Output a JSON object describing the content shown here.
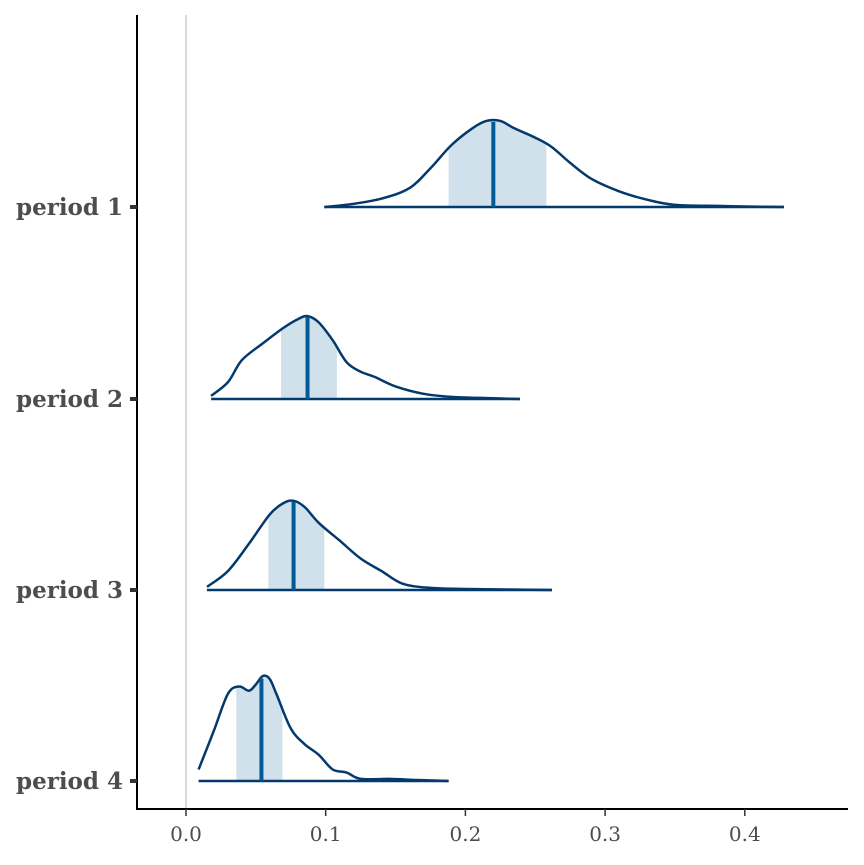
{
  "chart_data": {
    "type": "area",
    "title": "",
    "xlabel": "",
    "ylabel": "",
    "xlim": [
      -0.035,
      0.475
    ],
    "x_ticks": [
      "0.0",
      "0.1",
      "0.2",
      "0.3",
      "0.4"
    ],
    "reference_line_x": 0,
    "grid": false,
    "legend": "none",
    "colors": {
      "outline": "#03396c",
      "interval_fill": "#d1e1ec",
      "point_line": "#005b96",
      "reference_line": "#d9d9d9",
      "axis": "#000000",
      "text": "#4d4d4d"
    },
    "series": [
      {
        "name": "period 1",
        "range": [
          0.099,
          0.428
        ],
        "interval": [
          0.188,
          0.258
        ],
        "point": 0.22,
        "density": [
          [
            0.099,
            0.0
          ],
          [
            0.12,
            0.03
          ],
          [
            0.14,
            0.08
          ],
          [
            0.16,
            0.18
          ],
          [
            0.175,
            0.37
          ],
          [
            0.19,
            0.59
          ],
          [
            0.205,
            0.75
          ],
          [
            0.215,
            0.82
          ],
          [
            0.225,
            0.82
          ],
          [
            0.235,
            0.75
          ],
          [
            0.25,
            0.66
          ],
          [
            0.262,
            0.57
          ],
          [
            0.275,
            0.42
          ],
          [
            0.29,
            0.27
          ],
          [
            0.31,
            0.15
          ],
          [
            0.33,
            0.07
          ],
          [
            0.35,
            0.02
          ],
          [
            0.38,
            0.01
          ],
          [
            0.4,
            0.005
          ],
          [
            0.428,
            0.0
          ]
        ]
      },
      {
        "name": "period 2",
        "range": [
          0.018,
          0.239
        ],
        "interval": [
          0.068,
          0.108
        ],
        "point": 0.087,
        "density": [
          [
            0.018,
            0.03
          ],
          [
            0.03,
            0.16
          ],
          [
            0.04,
            0.37
          ],
          [
            0.055,
            0.53
          ],
          [
            0.07,
            0.68
          ],
          [
            0.08,
            0.76
          ],
          [
            0.087,
            0.79
          ],
          [
            0.095,
            0.73
          ],
          [
            0.105,
            0.56
          ],
          [
            0.115,
            0.35
          ],
          [
            0.125,
            0.26
          ],
          [
            0.135,
            0.21
          ],
          [
            0.15,
            0.12
          ],
          [
            0.17,
            0.05
          ],
          [
            0.19,
            0.02
          ],
          [
            0.21,
            0.01
          ],
          [
            0.239,
            0.0
          ]
        ]
      },
      {
        "name": "period 3",
        "range": [
          0.015,
          0.262
        ],
        "interval": [
          0.059,
          0.099
        ],
        "point": 0.077,
        "density": [
          [
            0.015,
            0.03
          ],
          [
            0.03,
            0.18
          ],
          [
            0.045,
            0.44
          ],
          [
            0.06,
            0.72
          ],
          [
            0.07,
            0.83
          ],
          [
            0.077,
            0.85
          ],
          [
            0.085,
            0.79
          ],
          [
            0.095,
            0.64
          ],
          [
            0.11,
            0.47
          ],
          [
            0.125,
            0.3
          ],
          [
            0.14,
            0.18
          ],
          [
            0.155,
            0.06
          ],
          [
            0.175,
            0.02
          ],
          [
            0.2,
            0.01
          ],
          [
            0.262,
            0.0
          ]
        ]
      },
      {
        "name": "period 4",
        "range": [
          0.009,
          0.188
        ],
        "interval": [
          0.036,
          0.069
        ],
        "point": 0.054,
        "density": [
          [
            0.009,
            0.11
          ],
          [
            0.02,
            0.48
          ],
          [
            0.03,
            0.83
          ],
          [
            0.038,
            0.9
          ],
          [
            0.045,
            0.86
          ],
          [
            0.05,
            0.92
          ],
          [
            0.055,
            1.0
          ],
          [
            0.06,
            0.97
          ],
          [
            0.065,
            0.82
          ],
          [
            0.075,
            0.5
          ],
          [
            0.085,
            0.35
          ],
          [
            0.095,
            0.25
          ],
          [
            0.105,
            0.11
          ],
          [
            0.115,
            0.08
          ],
          [
            0.125,
            0.02
          ],
          [
            0.145,
            0.02
          ],
          [
            0.165,
            0.01
          ],
          [
            0.188,
            0.0
          ]
        ]
      }
    ]
  }
}
